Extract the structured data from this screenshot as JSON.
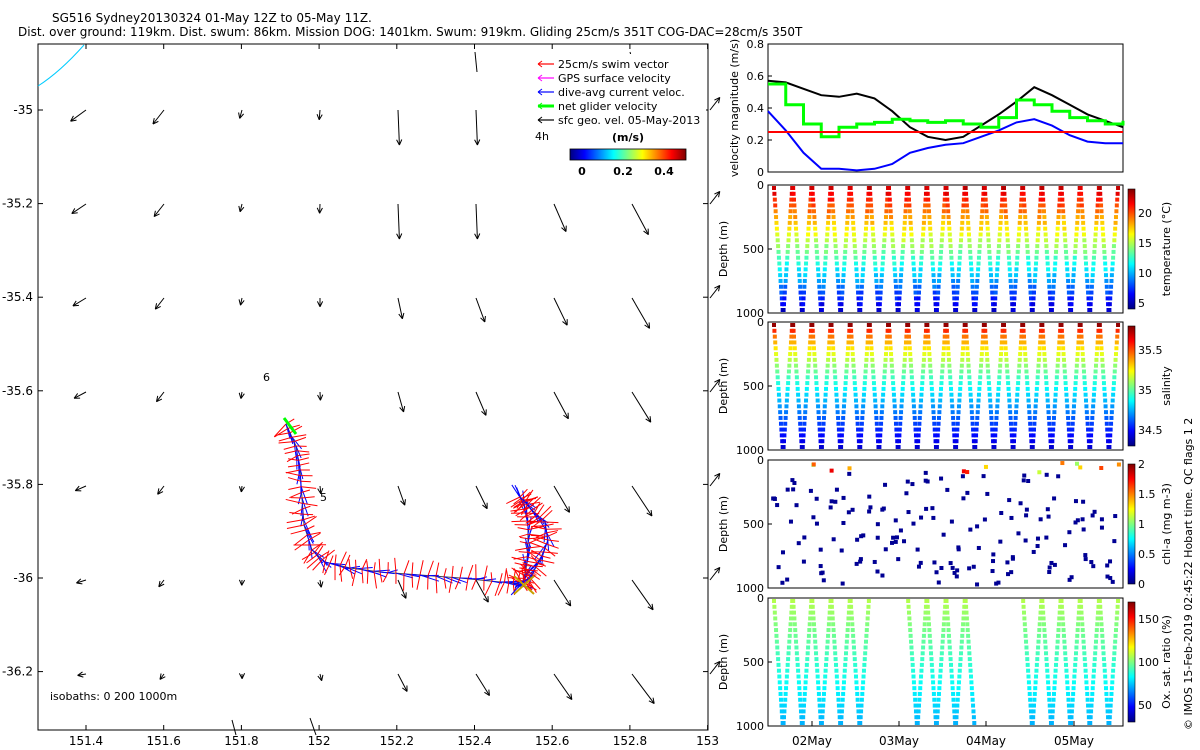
{
  "header": {
    "line1": "SG516 Sydney20130324 01-May 12Z to 05-May 11Z.",
    "line2": "Dist. over ground: 119km. Dist. swum: 86km. Mission DOG: 1401km. Swum: 919km. Gliding 25cm/s 351T COG-DAC=28cm/s 350T"
  },
  "side_note": "© IMOS 15-Feb-2019 02:45:22 Hobart time. QC flags 1  2",
  "map": {
    "x_ticks": [
      "151.4",
      "151.6",
      "151.8",
      "152",
      "152.2",
      "152.4",
      "152.6",
      "152.8",
      "153"
    ],
    "y_ticks": [
      "-35",
      "-35.2",
      "-35.4",
      "-35.6",
      "-35.8",
      "-36",
      "-36.2"
    ],
    "isobath_note": "isobaths: 0   200  1000m",
    "legend": [
      {
        "label": "25cm/s swim vector",
        "color": "#ff0000"
      },
      {
        "label": "GPS surface velocity",
        "color": "#ff00ff"
      },
      {
        "label": "dive-avg current veloc.",
        "color": "#0000ff"
      },
      {
        "label": "net glider velocity",
        "color": "#00ff00"
      },
      {
        "label": "sfc geo. vel. 05-May-2013",
        "color": "#000000"
      }
    ],
    "legend_4h": "4h",
    "colorbar_title": "(m/s)",
    "colorbar_ticks": [
      "0",
      "0.2",
      "0.4"
    ],
    "day_markers": [
      "6",
      "5"
    ],
    "colors": {
      "swim": "#ff0000",
      "dac": "#0000ff",
      "net": "#00ff00",
      "coast": "#00ccff"
    }
  },
  "chart_data": [
    {
      "type": "line",
      "title": "",
      "ylabel": "velocity magnitude (m/s)",
      "ylim": [
        0,
        0.8
      ],
      "yticks": [
        "0",
        "0.2",
        "0.4",
        "0.6",
        "0.8"
      ],
      "x": [
        0,
        0.5,
        1,
        1.5,
        2,
        2.5,
        3,
        3.5,
        4,
        4.5,
        5,
        5.5,
        6,
        6.5,
        7,
        7.5,
        8,
        8.5,
        9,
        9.5,
        10
      ],
      "series": [
        {
          "color": "#000000",
          "values": [
            0.57,
            0.56,
            0.52,
            0.48,
            0.47,
            0.49,
            0.46,
            0.38,
            0.28,
            0.22,
            0.2,
            0.22,
            0.29,
            0.36,
            0.44,
            0.53,
            0.48,
            0.42,
            0.36,
            0.32,
            0.28
          ]
        },
        {
          "color": "#0000ff",
          "values": [
            0.38,
            0.26,
            0.12,
            0.02,
            0.02,
            0.01,
            0.02,
            0.05,
            0.12,
            0.15,
            0.17,
            0.18,
            0.22,
            0.26,
            0.31,
            0.33,
            0.29,
            0.23,
            0.19,
            0.18,
            0.18
          ]
        },
        {
          "color": "#00ff00",
          "values": [
            0.55,
            0.42,
            0.3,
            0.22,
            0.28,
            0.3,
            0.31,
            0.33,
            0.32,
            0.31,
            0.32,
            0.3,
            0.28,
            0.34,
            0.45,
            0.42,
            0.38,
            0.34,
            0.32,
            0.3,
            0.32
          ]
        },
        {
          "color": "#ff0000",
          "values": [
            0.25,
            0.25,
            0.25,
            0.25,
            0.25,
            0.25,
            0.25,
            0.25,
            0.25,
            0.25,
            0.25,
            0.25,
            0.25,
            0.25,
            0.25,
            0.25,
            0.25,
            0.25,
            0.25,
            0.25,
            0.25
          ]
        }
      ]
    },
    {
      "type": "scatter",
      "ylabel": "Depth (m)",
      "yticks": [
        "0",
        "500",
        "1000"
      ],
      "cbar_label": "temperature (°C)",
      "cbar_ticks": [
        "5",
        "10",
        "15",
        "20"
      ],
      "clim": [
        4,
        24
      ]
    },
    {
      "type": "scatter",
      "ylabel": "Depth (m)",
      "yticks": [
        "0",
        "500",
        "1000"
      ],
      "cbar_label": "salinity",
      "cbar_ticks": [
        "34.5",
        "35",
        "35.5"
      ],
      "clim": [
        34.3,
        35.8
      ]
    },
    {
      "type": "scatter",
      "ylabel": "Depth (m)",
      "yticks": [
        "0",
        "500",
        "1000"
      ],
      "cbar_label": "chl-a (mg m-3)",
      "cbar_ticks": [
        "0",
        "0.5",
        "1",
        "1.5",
        "2"
      ],
      "clim": [
        0,
        2
      ]
    },
    {
      "type": "scatter",
      "ylabel": "Depth (m)",
      "yticks": [
        "0",
        "500",
        "1000"
      ],
      "cbar_label": "Ox. sat. ratio (%)",
      "cbar_ticks": [
        "50",
        "100",
        "150"
      ],
      "clim": [
        30,
        170
      ]
    }
  ],
  "time_ticks": [
    "02May",
    "03May",
    "04May",
    "05May"
  ]
}
